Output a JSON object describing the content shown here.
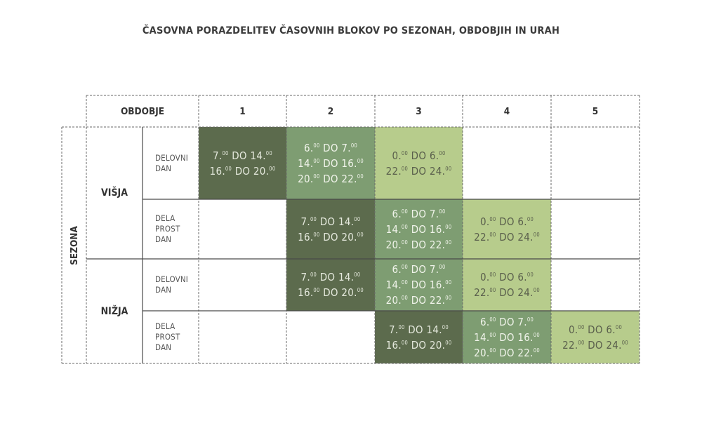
{
  "title": "ČASOVNA PORAZDELITEV ČASOVNIH BLOKOV PO SEZONAH, OBDOBJIH IN URAH",
  "header": {
    "label": "OBDOBJE",
    "periods": [
      "1",
      "2",
      "3",
      "4",
      "5"
    ]
  },
  "axis": {
    "sezona": "SEZONA",
    "seasons": [
      "VIŠJA",
      "NIŽJA"
    ],
    "day_types": {
      "delovni": [
        "DELOVNI",
        "DAN"
      ],
      "dela_prost": [
        "DELA",
        "PROST",
        "DAN"
      ]
    }
  },
  "colors": {
    "dark": "#5c6b4d",
    "mid": "#7e9d72",
    "light": "#b7cc8c"
  },
  "blocks": {
    "dark": [
      {
        "a": "7.",
        "as": "00",
        "b": " DO 14.",
        "bs": "00"
      },
      {
        "a": "16.",
        "as": "00",
        "b": " DO 20.",
        "bs": "00"
      }
    ],
    "mid": [
      {
        "a": "6.",
        "as": "00",
        "b": " DO 7.",
        "bs": "00"
      },
      {
        "a": "14.",
        "as": "00",
        "b": " DO 16.",
        "bs": "00"
      },
      {
        "a": "20.",
        "as": "00",
        "b": " DO 22.",
        "bs": "00"
      }
    ],
    "light": [
      {
        "a": "0.",
        "as": "00",
        "b": " DO 6.",
        "bs": "00"
      },
      {
        "a": "22.",
        "as": "00",
        "b": " DO 24.",
        "bs": "00"
      }
    ]
  },
  "schedule": [
    {
      "row": "visja-delovni",
      "cells": [
        "dark",
        "mid",
        "light",
        "",
        ""
      ]
    },
    {
      "row": "visja-dela-prost",
      "cells": [
        "",
        "dark",
        "mid",
        "light",
        ""
      ]
    },
    {
      "row": "nizja-delovni",
      "cells": [
        "",
        "dark",
        "mid",
        "light",
        ""
      ]
    },
    {
      "row": "nizja-dela-prost",
      "cells": [
        "",
        "",
        "dark",
        "mid",
        "light"
      ]
    }
  ]
}
